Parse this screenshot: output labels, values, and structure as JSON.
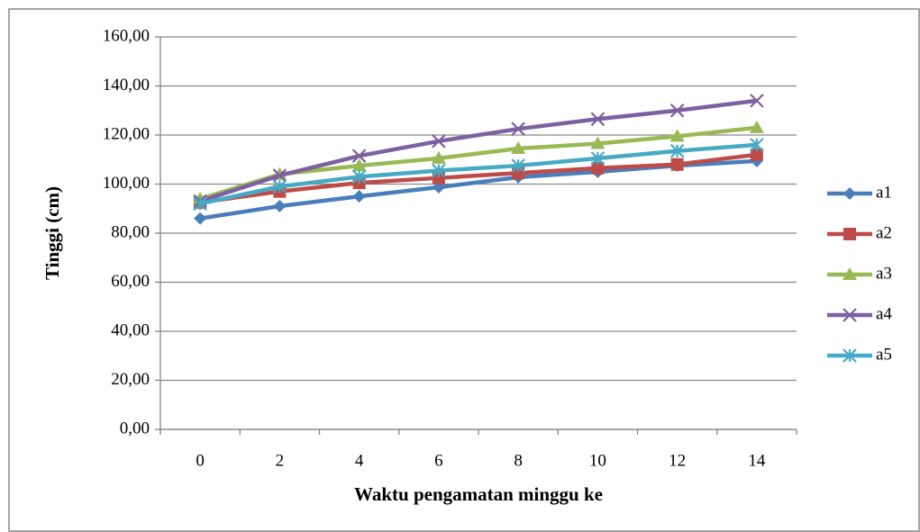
{
  "chart_data": {
    "type": "line",
    "x_label": "Waktu pengamatan minggu ke",
    "y_label": "Tinggi (cm)",
    "categories": [
      "0",
      "2",
      "4",
      "6",
      "8",
      "10",
      "12",
      "14"
    ],
    "ylim": [
      0,
      160
    ],
    "yticks": [
      {
        "value": 0,
        "label": "0,00"
      },
      {
        "value": 20,
        "label": "20,00"
      },
      {
        "value": 40,
        "label": "40,00"
      },
      {
        "value": 60,
        "label": "60,00"
      },
      {
        "value": 80,
        "label": "80,00"
      },
      {
        "value": 100,
        "label": "100,00"
      },
      {
        "value": 120,
        "label": "120,00"
      },
      {
        "value": 140,
        "label": "140,00"
      },
      {
        "value": 160,
        "label": "160,00"
      }
    ],
    "grid": true,
    "legend": "right",
    "series": [
      {
        "name": "a1",
        "color": "#4a7ebb",
        "marker": "diamond",
        "values": [
          86,
          91,
          95,
          98.7,
          102.8,
          105,
          107.5,
          109.4
        ]
      },
      {
        "name": "a2",
        "color": "#be4b48",
        "marker": "square",
        "values": [
          92.5,
          97,
          100.5,
          102.5,
          104.5,
          106.5,
          108,
          112
        ]
      },
      {
        "name": "a3",
        "color": "#98b954",
        "marker": "triangle",
        "values": [
          94,
          104,
          107.5,
          110.5,
          114.5,
          116.5,
          119.5,
          123
        ]
      },
      {
        "name": "a4",
        "color": "#7d60a0",
        "marker": "x",
        "values": [
          93,
          103.5,
          111.5,
          117.5,
          122.5,
          126.5,
          130,
          134
        ]
      },
      {
        "name": "a5",
        "color": "#46aac5",
        "marker": "asterisk",
        "values": [
          92,
          99,
          103,
          105.5,
          107.5,
          110.5,
          113.5,
          116
        ]
      }
    ]
  }
}
